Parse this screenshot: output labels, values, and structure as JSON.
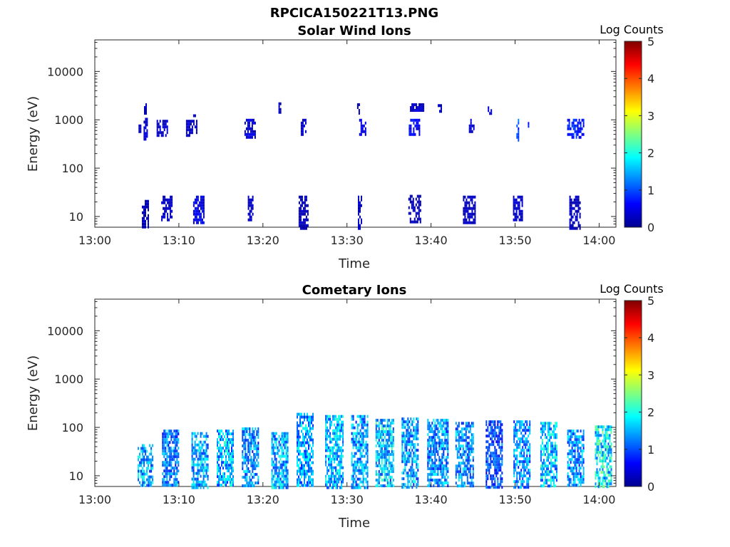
{
  "figure": {
    "title": "RPCICA150221T13.PNG"
  },
  "colormap": "jet",
  "chart_data": [
    {
      "type": "heatmap",
      "title": "Solar Wind Ions",
      "xlabel": "Time",
      "ylabel": "Energy (eV)",
      "y_scale": "log",
      "x_ticks": [
        "13:00",
        "13:10",
        "13:20",
        "13:30",
        "13:40",
        "13:50",
        "14:00"
      ],
      "y_ticks": [
        "10",
        "100",
        "1000",
        "10000"
      ],
      "xlim": [
        "13:00",
        "14:02"
      ],
      "ylim": [
        6,
        45000
      ],
      "colorbar": {
        "label": "Log Counts",
        "ticks": [
          "0",
          "1",
          "2",
          "3",
          "4",
          "5"
        ],
        "range": [
          0,
          5
        ]
      },
      "clusters": [
        {
          "t": "13:06.0",
          "width_min": 0.4,
          "e_min": 400,
          "e_max": 1100,
          "c": 0.4
        },
        {
          "t": "13:06.0",
          "width_min": 0.3,
          "e_min": 1400,
          "e_max": 2200,
          "c": 0.3
        },
        {
          "t": "13:05.3",
          "width_min": 0.2,
          "e_min": 550,
          "e_max": 800,
          "c": 0.3
        },
        {
          "t": "13:08.0",
          "width_min": 1.3,
          "e_min": 450,
          "e_max": 1000,
          "c": 0.35
        },
        {
          "t": "13:11.5",
          "width_min": 1.3,
          "e_min": 450,
          "e_max": 1000,
          "c": 0.35
        },
        {
          "t": "13:11.8",
          "width_min": 0.2,
          "e_min": 1100,
          "e_max": 1300,
          "c": 0.3
        },
        {
          "t": "13:18.4",
          "width_min": 1.2,
          "e_min": 450,
          "e_max": 1050,
          "c": 0.4
        },
        {
          "t": "13:22.0",
          "width_min": 0.3,
          "e_min": 1500,
          "e_max": 2300,
          "c": 0.3
        },
        {
          "t": "13:24.8",
          "width_min": 0.6,
          "e_min": 500,
          "e_max": 1050,
          "c": 0.35
        },
        {
          "t": "13:31.8",
          "width_min": 0.7,
          "e_min": 500,
          "e_max": 1050,
          "c": 0.45
        },
        {
          "t": "13:31.3",
          "width_min": 0.2,
          "e_min": 1400,
          "e_max": 2200,
          "c": 0.3
        },
        {
          "t": "13:38.0",
          "width_min": 1.3,
          "e_min": 500,
          "e_max": 1050,
          "c": 0.6
        },
        {
          "t": "13:38.3",
          "width_min": 1.6,
          "e_min": 1500,
          "e_max": 2200,
          "c": 0.35
        },
        {
          "t": "13:41.0",
          "width_min": 0.4,
          "e_min": 1600,
          "e_max": 2100,
          "c": 0.3
        },
        {
          "t": "13:44.8",
          "width_min": 0.6,
          "e_min": 550,
          "e_max": 1050,
          "c": 0.4
        },
        {
          "t": "13:47.0",
          "width_min": 0.5,
          "e_min": 1400,
          "e_max": 1900,
          "c": 0.3
        },
        {
          "t": "13:50.3",
          "width_min": 0.3,
          "e_min": 400,
          "e_max": 1050,
          "c": 0.9
        },
        {
          "t": "13:51.5",
          "width_min": 0.3,
          "e_min": 600,
          "e_max": 900,
          "c": 0.8
        },
        {
          "t": "13:57.2",
          "width_min": 2.0,
          "e_min": 450,
          "e_max": 1050,
          "c": 0.7
        },
        {
          "t": "13:06.0",
          "width_min": 0.8,
          "e_min": 6,
          "e_max": 22,
          "c": 0.3
        },
        {
          "t": "13:08.5",
          "width_min": 1.2,
          "e_min": 8,
          "e_max": 27,
          "c": 0.3
        },
        {
          "t": "13:12.3",
          "width_min": 1.2,
          "e_min": 7,
          "e_max": 27,
          "c": 0.55
        },
        {
          "t": "13:18.5",
          "width_min": 0.6,
          "e_min": 8,
          "e_max": 27,
          "c": 0.3
        },
        {
          "t": "13:24.8",
          "width_min": 1.1,
          "e_min": 6,
          "e_max": 27,
          "c": 0.3
        },
        {
          "t": "13:31.5",
          "width_min": 0.4,
          "e_min": 6,
          "e_max": 27,
          "c": 0.3
        },
        {
          "t": "13:38.0",
          "width_min": 1.4,
          "e_min": 8,
          "e_max": 28,
          "c": 0.3
        },
        {
          "t": "13:44.5",
          "width_min": 1.4,
          "e_min": 7,
          "e_max": 27,
          "c": 0.3
        },
        {
          "t": "13:50.3",
          "width_min": 1.1,
          "e_min": 8,
          "e_max": 27,
          "c": 0.35
        },
        {
          "t": "13:57.1",
          "width_min": 1.3,
          "e_min": 6,
          "e_max": 27,
          "c": 0.3
        }
      ]
    },
    {
      "type": "heatmap",
      "title": "Cometary Ions",
      "xlabel": "Time",
      "ylabel": "Energy (eV)",
      "y_scale": "log",
      "x_ticks": [
        "13:00",
        "13:10",
        "13:20",
        "13:30",
        "13:40",
        "13:50",
        "14:00"
      ],
      "y_ticks": [
        "10",
        "100",
        "1000",
        "10000"
      ],
      "xlim": [
        "13:00",
        "14:02"
      ],
      "ylim": [
        6,
        45000
      ],
      "colorbar": {
        "label": "Log Counts",
        "ticks": [
          "0",
          "1",
          "2",
          "3",
          "4",
          "5"
        ],
        "range": [
          0,
          5
        ]
      },
      "clusters": [
        {
          "t": "13:06.0",
          "width_min": 1.8,
          "e_min": 6,
          "e_max": 45,
          "c": 1.4
        },
        {
          "t": "13:09.0",
          "width_min": 2.0,
          "e_min": 6,
          "e_max": 90,
          "c": 1.2
        },
        {
          "t": "13:12.5",
          "width_min": 2.0,
          "e_min": 6,
          "e_max": 80,
          "c": 1.5
        },
        {
          "t": "13:15.5",
          "width_min": 2.0,
          "e_min": 6,
          "e_max": 90,
          "c": 1.5
        },
        {
          "t": "13:18.5",
          "width_min": 2.0,
          "e_min": 6,
          "e_max": 100,
          "c": 1.3
        },
        {
          "t": "13:22.0",
          "width_min": 2.0,
          "e_min": 6,
          "e_max": 80,
          "c": 1.5
        },
        {
          "t": "13:25.0",
          "width_min": 2.0,
          "e_min": 6,
          "e_max": 200,
          "c": 1.4
        },
        {
          "t": "13:28.5",
          "width_min": 2.2,
          "e_min": 6,
          "e_max": 180,
          "c": 1.5
        },
        {
          "t": "13:31.5",
          "width_min": 2.0,
          "e_min": 6,
          "e_max": 180,
          "c": 1.4
        },
        {
          "t": "13:34.5",
          "width_min": 2.2,
          "e_min": 6,
          "e_max": 150,
          "c": 1.6
        },
        {
          "t": "13:37.5",
          "width_min": 2.0,
          "e_min": 6,
          "e_max": 160,
          "c": 1.4
        },
        {
          "t": "13:40.8",
          "width_min": 2.5,
          "e_min": 6,
          "e_max": 150,
          "c": 1.3
        },
        {
          "t": "13:44.0",
          "width_min": 2.2,
          "e_min": 6,
          "e_max": 130,
          "c": 1.3
        },
        {
          "t": "13:47.5",
          "width_min": 2.0,
          "e_min": 6,
          "e_max": 140,
          "c": 1.0
        },
        {
          "t": "13:50.8",
          "width_min": 2.0,
          "e_min": 6,
          "e_max": 140,
          "c": 1.3
        },
        {
          "t": "13:54.0",
          "width_min": 2.0,
          "e_min": 6,
          "e_max": 130,
          "c": 1.6
        },
        {
          "t": "13:57.2",
          "width_min": 2.0,
          "e_min": 6,
          "e_max": 90,
          "c": 1.3
        },
        {
          "t": "14:00.5",
          "width_min": 2.0,
          "e_min": 6,
          "e_max": 110,
          "c": 1.8
        }
      ]
    }
  ]
}
